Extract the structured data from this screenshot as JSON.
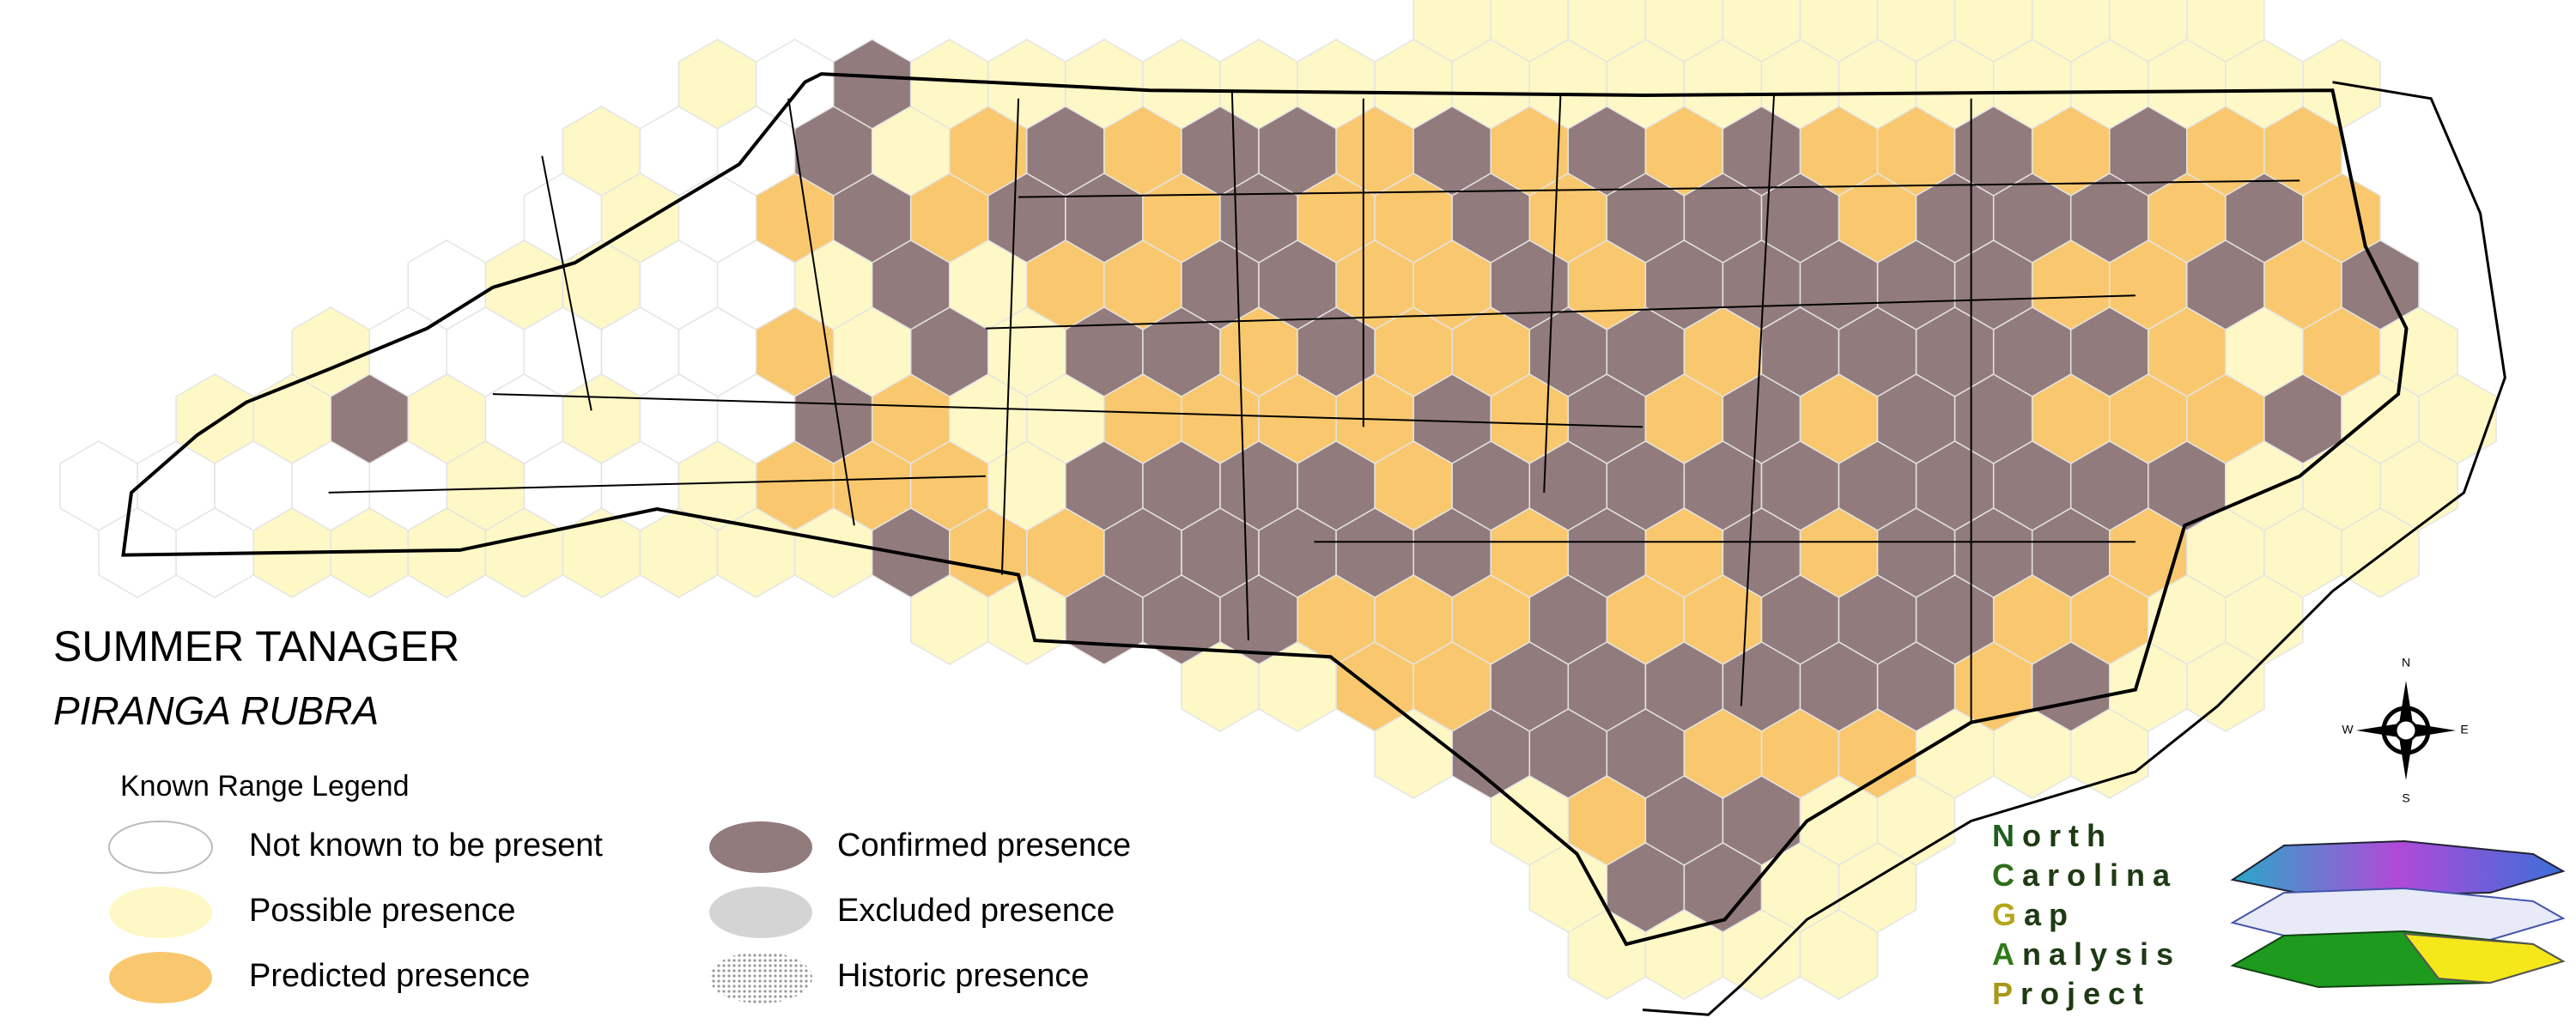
{
  "title": "SUMMER TANAGER",
  "subtitle": "PIRANGA RUBRA",
  "legend": {
    "title": "Known Range Legend",
    "items": [
      {
        "label": "Not known to be present",
        "color": "#ffffff"
      },
      {
        "label": "Possible presence",
        "color": "#fef8c6"
      },
      {
        "label": "Predicted presence",
        "color": "#f9c86e"
      },
      {
        "label": "Confirmed presence",
        "color": "#927b7c"
      },
      {
        "label": "Excluded presence",
        "color": "#d4d4d4"
      },
      {
        "label": "Historic presence",
        "color": "#9a9a9a"
      }
    ]
  },
  "compass": {
    "n": "N",
    "s": "S",
    "e": "E",
    "w": "W"
  },
  "logo": {
    "lines": [
      "North",
      "Carolina",
      "Gap",
      "Analysis",
      "Project"
    ]
  }
}
